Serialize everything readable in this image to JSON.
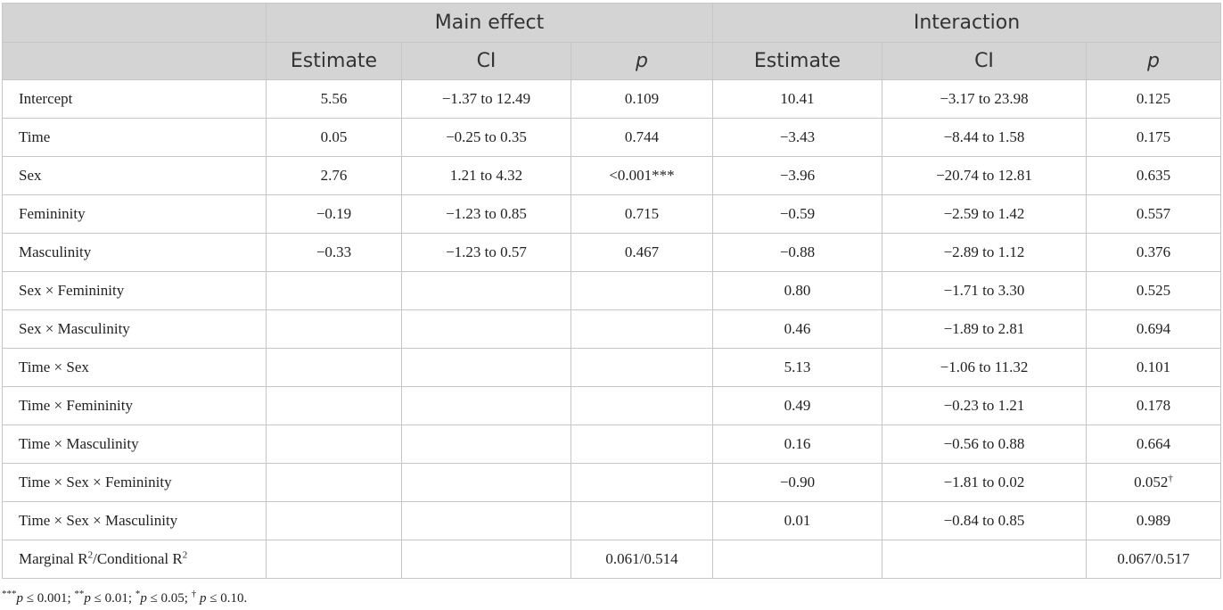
{
  "header": {
    "group_main": "Main effect",
    "group_interaction": "Interaction",
    "estimate": "Estimate",
    "ci": "CI",
    "p": "p"
  },
  "rows": [
    {
      "label": "Intercept",
      "m_est": "5.56",
      "m_ci": "−1.37 to 12.49",
      "m_p": "0.109",
      "i_est": "10.41",
      "i_ci": "−3.17 to 23.98",
      "i_p": "0.125"
    },
    {
      "label": "Time",
      "m_est": "0.05",
      "m_ci": "−0.25 to 0.35",
      "m_p": "0.744",
      "i_est": "−3.43",
      "i_ci": "−8.44 to 1.58",
      "i_p": "0.175"
    },
    {
      "label": "Sex",
      "m_est": "2.76",
      "m_ci": "1.21 to 4.32",
      "m_p": "<0.001***",
      "i_est": "−3.96",
      "i_ci": "−20.74 to 12.81",
      "i_p": "0.635"
    },
    {
      "label": "Femininity",
      "m_est": "−0.19",
      "m_ci": "−1.23 to 0.85",
      "m_p": "0.715",
      "i_est": "−0.59",
      "i_ci": "−2.59 to 1.42",
      "i_p": "0.557"
    },
    {
      "label": "Masculinity",
      "m_est": "−0.33",
      "m_ci": "−1.23 to 0.57",
      "m_p": "0.467",
      "i_est": "−0.88",
      "i_ci": "−2.89 to 1.12",
      "i_p": "0.376"
    },
    {
      "label": "Sex × Femininity",
      "m_est": "",
      "m_ci": "",
      "m_p": "",
      "i_est": "0.80",
      "i_ci": "−1.71 to 3.30",
      "i_p": "0.525"
    },
    {
      "label": "Sex × Masculinity",
      "m_est": "",
      "m_ci": "",
      "m_p": "",
      "i_est": "0.46",
      "i_ci": "−1.89 to 2.81",
      "i_p": "0.694"
    },
    {
      "label": "Time × Sex",
      "m_est": "",
      "m_ci": "",
      "m_p": "",
      "i_est": "5.13",
      "i_ci": "−1.06 to 11.32",
      "i_p": "0.101"
    },
    {
      "label": "Time × Femininity",
      "m_est": "",
      "m_ci": "",
      "m_p": "",
      "i_est": "0.49",
      "i_ci": "−0.23 to 1.21",
      "i_p": "0.178"
    },
    {
      "label": "Time × Masculinity",
      "m_est": "",
      "m_ci": "",
      "m_p": "",
      "i_est": "0.16",
      "i_ci": "−0.56 to 0.88",
      "i_p": "0.664"
    },
    {
      "label": "Time × Sex × Femininity",
      "m_est": "",
      "m_ci": "",
      "m_p": "",
      "i_est": "−0.90",
      "i_ci": "−1.81 to 0.02",
      "i_p": "0.052",
      "i_p_sup": "†"
    },
    {
      "label": "Time × Sex × Masculinity",
      "m_est": "",
      "m_ci": "",
      "m_p": "",
      "i_est": "0.01",
      "i_ci": "−0.84 to 0.85",
      "i_p": "0.989"
    }
  ],
  "r2_row": {
    "label_prefix": "Marginal R",
    "label_sup1": "2",
    "label_mid": "/Conditional R",
    "label_sup2": "2",
    "m_value": "0.061/0.514",
    "i_value": "0.067/0.517"
  },
  "footnote": {
    "sup1": "***",
    "p1": "p",
    "t1": " ≤ 0.001; ",
    "sup2": "**",
    "p2": "p",
    "t2": " ≤ 0.01; ",
    "sup3": "*",
    "p3": "p",
    "t3": " ≤ 0.05; ",
    "sup4": "†",
    "p4": " p",
    "t4": " ≤ 0.10."
  }
}
